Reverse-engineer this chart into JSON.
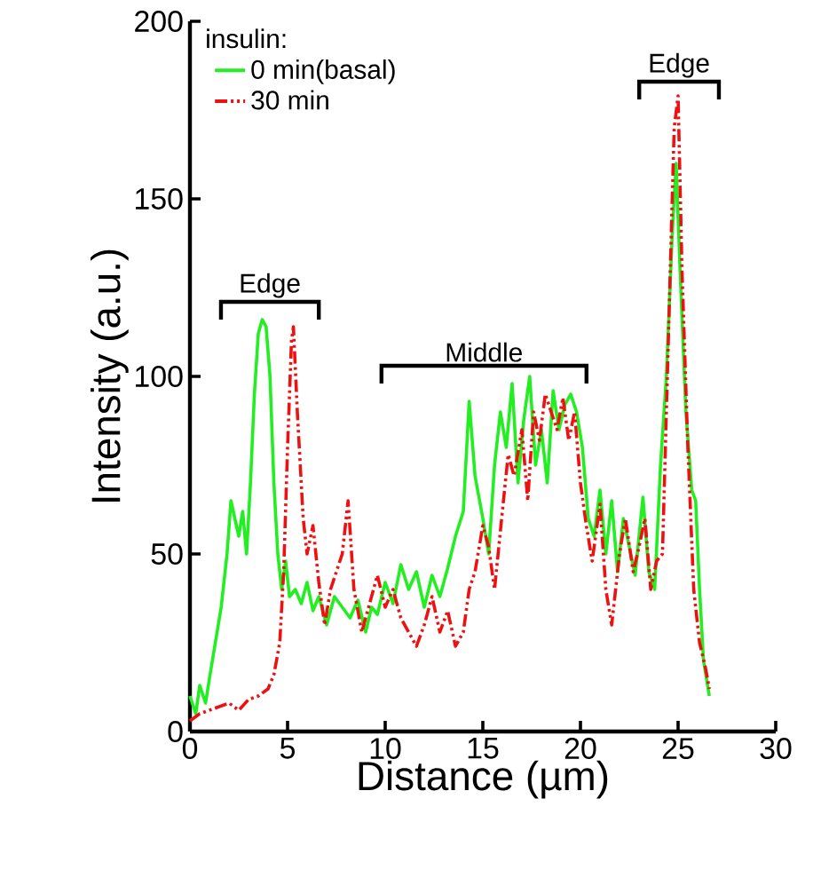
{
  "chart_data": {
    "type": "line",
    "xlabel": "Distance (µm)",
    "ylabel": "Intensity (a.u.)",
    "legend_title": "insulin:",
    "legend": "top left",
    "marker": "none",
    "grid": false,
    "xlim": [
      0,
      30
    ],
    "xticks": [
      0,
      5,
      10,
      15,
      20,
      25,
      30
    ],
    "ylim": [
      0,
      200
    ],
    "yticks": [
      0,
      50,
      100,
      150,
      200
    ],
    "annotations": [
      "Edge",
      "Middle",
      "Edge"
    ],
    "series": [
      {
        "name": "0 min(basal)",
        "color": "#22ee22",
        "line_style": "solid",
        "x": [
          0,
          0.3,
          0.5,
          0.8,
          1.0,
          1.3,
          1.6,
          1.9,
          2.1,
          2.3,
          2.5,
          2.7,
          2.9,
          3.1,
          3.3,
          3.5,
          3.7,
          3.9,
          4.1,
          4.3,
          4.5,
          4.7,
          4.9,
          5.1,
          5.4,
          5.7,
          6.0,
          6.3,
          6.6,
          7.0,
          7.4,
          7.8,
          8.2,
          8.6,
          9.0,
          9.3,
          9.6,
          10.0,
          10.4,
          10.8,
          11.2,
          11.6,
          12.0,
          12.4,
          12.8,
          13.2,
          13.6,
          14.0,
          14.3,
          14.6,
          15.0,
          15.3,
          15.6,
          15.9,
          16.2,
          16.5,
          16.8,
          17.1,
          17.4,
          17.7,
          18.0,
          18.3,
          18.6,
          18.9,
          19.2,
          19.5,
          19.8,
          20.1,
          20.4,
          20.7,
          21.0,
          21.3,
          21.6,
          21.9,
          22.2,
          22.5,
          22.8,
          23.2,
          23.5,
          23.8,
          24.1,
          24.4,
          24.7,
          24.9,
          25.1,
          25.4,
          25.7,
          25.9,
          26.1,
          26.3,
          26.6
        ],
        "values": [
          10,
          5,
          13,
          8,
          15,
          25,
          35,
          50,
          65,
          60,
          55,
          62,
          50,
          70,
          95,
          112,
          116,
          114,
          100,
          70,
          50,
          40,
          48,
          38,
          40,
          36,
          42,
          34,
          38,
          30,
          38,
          35,
          32,
          37,
          28,
          35,
          33,
          42,
          36,
          47,
          40,
          45,
          35,
          44,
          38,
          46,
          55,
          62,
          93,
          72,
          60,
          50,
          75,
          90,
          80,
          98,
          70,
          88,
          100,
          75,
          85,
          70,
          96,
          85,
          92,
          95,
          90,
          80,
          60,
          55,
          68,
          50,
          65,
          45,
          60,
          52,
          44,
          66,
          45,
          40,
          75,
          100,
          140,
          160,
          130,
          90,
          68,
          65,
          40,
          20,
          10
        ]
      },
      {
        "name": "30 min",
        "color": "#ee1111",
        "line_style": "dashdotdotted",
        "x": [
          0,
          0.5,
          1.0,
          1.5,
          2.0,
          2.5,
          3.0,
          3.5,
          4.0,
          4.3,
          4.6,
          4.8,
          5.0,
          5.2,
          5.3,
          5.5,
          5.8,
          6.0,
          6.3,
          6.6,
          6.9,
          7.2,
          7.5,
          7.8,
          8.1,
          8.4,
          8.8,
          9.2,
          9.6,
          10.0,
          10.4,
          10.8,
          11.2,
          11.6,
          12.0,
          12.4,
          12.8,
          13.2,
          13.6,
          14.0,
          14.3,
          14.6,
          15.0,
          15.3,
          15.6,
          16.0,
          16.3,
          16.6,
          17.0,
          17.3,
          17.6,
          17.9,
          18.2,
          18.5,
          18.8,
          19.1,
          19.4,
          19.7,
          20.0,
          20.3,
          20.6,
          21.0,
          21.3,
          21.6,
          22.0,
          22.3,
          22.7,
          23.0,
          23.3,
          23.6,
          23.9,
          24.2,
          24.5,
          24.8,
          25.0,
          25.2,
          25.5,
          25.8,
          26.1,
          26.4,
          26.6
        ],
        "values": [
          3,
          5,
          6,
          7,
          8,
          6,
          9,
          10,
          12,
          16,
          25,
          45,
          80,
          110,
          114,
          90,
          60,
          50,
          58,
          42,
          30,
          40,
          45,
          50,
          65,
          40,
          28,
          36,
          44,
          35,
          40,
          32,
          28,
          24,
          30,
          38,
          28,
          34,
          24,
          28,
          40,
          45,
          58,
          52,
          40,
          62,
          78,
          72,
          85,
          65,
          90,
          82,
          95,
          90,
          85,
          94,
          82,
          90,
          70,
          58,
          48,
          64,
          40,
          30,
          50,
          60,
          45,
          52,
          60,
          40,
          48,
          50,
          110,
          170,
          179,
          130,
          80,
          40,
          25,
          18,
          12
        ]
      }
    ]
  }
}
